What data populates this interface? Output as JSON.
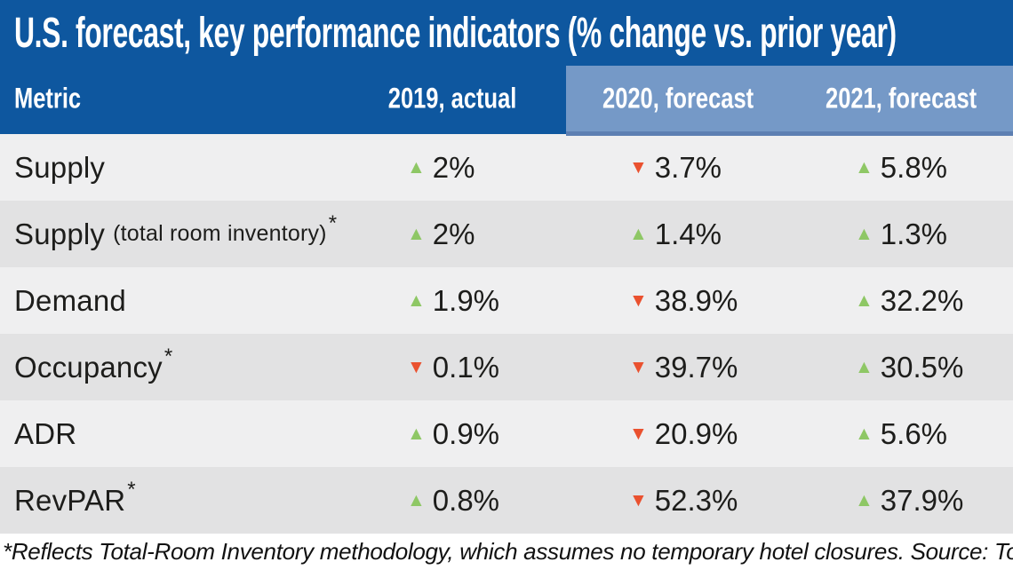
{
  "title": "U.S. forecast, key performance indicators (% change vs. prior year)",
  "colors": {
    "header_blue": "#0e579f",
    "band_blue": "#7599c7",
    "band_edge": "#5d7fb2",
    "row_light": "#efeff0",
    "row_dark": "#e2e2e3",
    "up_green": "#8ec765",
    "down_red": "#ea512f",
    "text_dark": "#1d1d1b"
  },
  "icons": {
    "up": "▲",
    "down": "▼"
  },
  "columns": [
    {
      "key": "metric",
      "label": "Metric"
    },
    {
      "key": "y2019",
      "label": "2019, actual"
    },
    {
      "key": "y2020",
      "label": "2020, forecast"
    },
    {
      "key": "y2021",
      "label": "2021, forecast"
    }
  ],
  "rows": [
    {
      "metric": {
        "name": "Supply",
        "note": "",
        "star": false
      },
      "values": [
        {
          "dir": "up",
          "num": "2%"
        },
        {
          "dir": "down",
          "num": "3.7%"
        },
        {
          "dir": "up",
          "num": "5.8%"
        }
      ]
    },
    {
      "metric": {
        "name": "Supply",
        "note": "(total room inventory)",
        "star": true
      },
      "values": [
        {
          "dir": "up",
          "num": "2%"
        },
        {
          "dir": "up",
          "num": "1.4%"
        },
        {
          "dir": "up",
          "num": "1.3%"
        }
      ]
    },
    {
      "metric": {
        "name": "Demand",
        "note": "",
        "star": false
      },
      "values": [
        {
          "dir": "up",
          "num": "1.9%"
        },
        {
          "dir": "down",
          "num": "38.9%"
        },
        {
          "dir": "up",
          "num": "32.2%"
        }
      ]
    },
    {
      "metric": {
        "name": "Occupancy",
        "note": "",
        "star": true
      },
      "values": [
        {
          "dir": "down",
          "num": "0.1%"
        },
        {
          "dir": "down",
          "num": "39.7%"
        },
        {
          "dir": "up",
          "num": "30.5%"
        }
      ]
    },
    {
      "metric": {
        "name": "ADR",
        "note": "",
        "star": false
      },
      "values": [
        {
          "dir": "up",
          "num": "0.9%"
        },
        {
          "dir": "down",
          "num": "20.9%"
        },
        {
          "dir": "up",
          "num": "5.6%"
        }
      ]
    },
    {
      "metric": {
        "name": "RevPAR",
        "note": "",
        "star": true
      },
      "values": [
        {
          "dir": "up",
          "num": "0.8%"
        },
        {
          "dir": "down",
          "num": "52.3%"
        },
        {
          "dir": "up",
          "num": "37.9%"
        }
      ]
    }
  ],
  "footnote": "*Reflects Total-Room Inventory methodology, which assumes no temporary hotel closures. Source: Tourism Economics",
  "chart_data": {
    "type": "table",
    "title": "U.S. forecast, key performance indicators (% change vs. prior year)",
    "units": "% change vs. prior year",
    "columns": [
      "Metric",
      "2019, actual",
      "2020, forecast",
      "2021, forecast"
    ],
    "rows": [
      [
        "Supply",
        2,
        -3.7,
        5.8
      ],
      [
        "Supply (total room inventory)*",
        2,
        1.4,
        1.3
      ],
      [
        "Demand",
        1.9,
        -38.9,
        32.2
      ],
      [
        "Occupancy*",
        -0.1,
        -39.7,
        30.5
      ],
      [
        "ADR",
        0.9,
        -20.9,
        5.6
      ],
      [
        "RevPAR*",
        0.8,
        -52.3,
        37.9
      ]
    ],
    "footnote": "*Reflects Total-Room Inventory methodology, which assumes no temporary hotel closures. Source: Tourism Economics"
  }
}
